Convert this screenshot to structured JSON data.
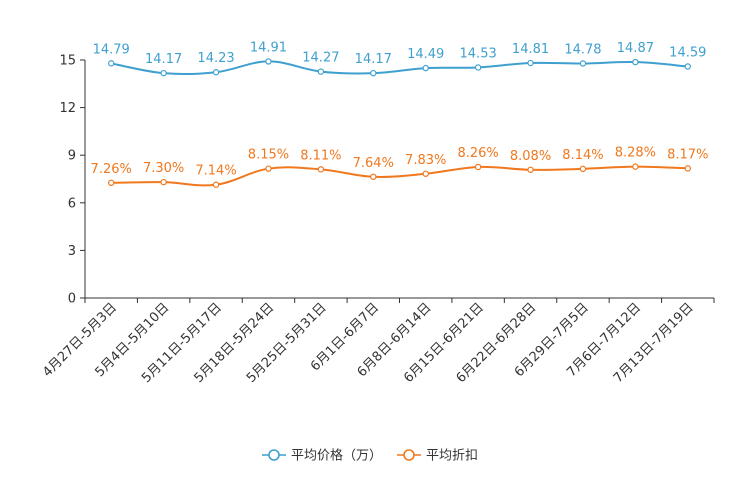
{
  "chart_data": {
    "type": "line",
    "title": "",
    "xlabel": "",
    "ylabel": "",
    "ylim": [
      0,
      15
    ],
    "yticks": [
      "0",
      "3",
      "6",
      "9",
      "12",
      "15"
    ],
    "categories": [
      "4月27日-5月3日",
      "5月4日-5月10日",
      "5月11日-5月17日",
      "5月18日-5月24日",
      "5月25日-5月31日",
      "6月1日-6月7日",
      "6月8日-6月14日",
      "6月15日-6月21日",
      "6月22日-6月28日",
      "6月29日-7月5日",
      "7月6日-7月12日",
      "7月13日-7月19日"
    ],
    "series": [
      {
        "name": "平均价格（万）",
        "color": "#3fa0cf",
        "values": [
          14.79,
          14.17,
          14.23,
          14.91,
          14.27,
          14.17,
          14.49,
          14.53,
          14.81,
          14.78,
          14.87,
          14.59
        ],
        "labels": [
          "14.79",
          "14.17",
          "14.23",
          "14.91",
          "14.27",
          "14.17",
          "14.49",
          "14.53",
          "14.81",
          "14.78",
          "14.87",
          "14.59"
        ]
      },
      {
        "name": "平均折扣",
        "color": "#f0781e",
        "values": [
          7.26,
          7.3,
          7.14,
          8.15,
          8.11,
          7.64,
          7.83,
          8.26,
          8.08,
          8.14,
          8.28,
          8.17
        ],
        "labels": [
          "7.26%",
          "7.30%",
          "7.14%",
          "8.15%",
          "8.11%",
          "7.64%",
          "7.83%",
          "8.26%",
          "8.08%",
          "8.14%",
          "8.28%",
          "8.17%"
        ]
      }
    ],
    "legend_position": "bottom-center",
    "grid": false
  }
}
